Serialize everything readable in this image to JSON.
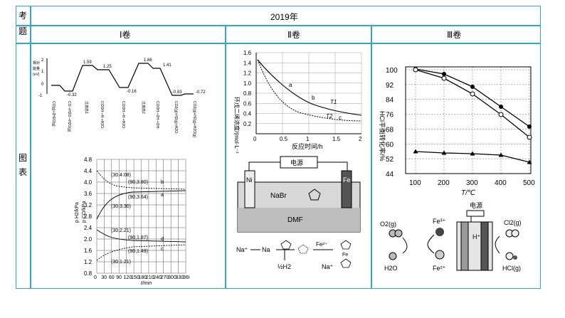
{
  "table": {
    "col0_top": [
      "考",
      "题"
    ],
    "col0_body": [
      "图",
      "表"
    ],
    "year": "2019年",
    "headers": [
      "Ⅰ卷",
      "Ⅱ卷",
      "Ⅲ卷"
    ]
  },
  "panel1_energy": {
    "ylabel": "相对能量(eV)",
    "values": [
      "-0.32",
      "1.59",
      "1.25",
      "-0.16",
      "1.86",
      "1.41",
      "-0.83",
      "-0.72"
    ],
    "xlabels": [
      "CO(g)+2H2O(g)",
      "CO·+H2O·+H2O(g)",
      "过渡态1",
      "COOH·+H·+H2O·",
      "COOH·+H·+H2O·",
      "过渡态2",
      "COOH·+2H·+OH·",
      "CO2(g)+H2(g)+H2O·",
      "CO2(g)+H2(g)+H2O(g)"
    ]
  },
  "panel1_pressure": {
    "ylabel1": "p H2/kPa",
    "ylabel2": "p CO/kPa",
    "xlabel": "t/min",
    "yticks": [
      "4.8",
      "4.4",
      "4.0",
      "3.6",
      "3.2",
      "2.8",
      "2.4",
      "2.0",
      "1.6",
      "1.2",
      "0.8"
    ],
    "xticks": [
      "0",
      "30",
      "60",
      "90",
      "120",
      "150",
      "180",
      "210",
      "240",
      "270",
      "300",
      "330",
      "360"
    ],
    "points": [
      "(30,4.08)",
      "(90,3.80)",
      "(90,3.64)",
      "(30,3.30)",
      "(30,2.21)",
      "(90,1.87)",
      "(90,1.49)",
      "(30,1.21)"
    ],
    "curve_labels": [
      "b",
      "a",
      "d",
      "c"
    ]
  },
  "panel2_chart": {
    "ylabel": "环戊二烯浓度/(mol·L⁻¹)",
    "xlabel": "反应时间/h",
    "yticks": [
      "1.6",
      "1.4",
      "1.2",
      "1.0",
      "0.8",
      "0.6",
      "0.4",
      "0.2"
    ],
    "xticks": [
      "0",
      "0.5",
      "1",
      "1.5",
      "2"
    ],
    "labels": [
      "a",
      "b",
      "T1",
      "T2",
      "c"
    ]
  },
  "panel2_cell": {
    "power": "电源",
    "left": "Ni",
    "right": "Fe",
    "electrolyte1": "NaBr",
    "electrolyte2": "DMF"
  },
  "panel2_scheme": {
    "na1": "Na⁺",
    "na2": "Na",
    "h2": "½H2",
    "fe": "Fe²⁺",
    "na3": "Na⁺",
    "fe_label": "Fe"
  },
  "panel3_chart": {
    "ylabel": "HCl平衡转化率/%",
    "xlabel": "T/℃",
    "yticks": [
      "100",
      "92",
      "84",
      "76",
      "68",
      "60",
      "52",
      "44"
    ],
    "xticks": [
      "100",
      "200",
      "300",
      "400",
      "500"
    ]
  },
  "panel3_scheme": {
    "power": "电源",
    "o2": "O2(g)",
    "fe3": "Fe³⁺",
    "fe2": "Fe²⁺",
    "h2o": "H2O",
    "hplus": "H⁺",
    "cl2": "Cl2(g)",
    "hcl": "HCl(g)"
  }
}
